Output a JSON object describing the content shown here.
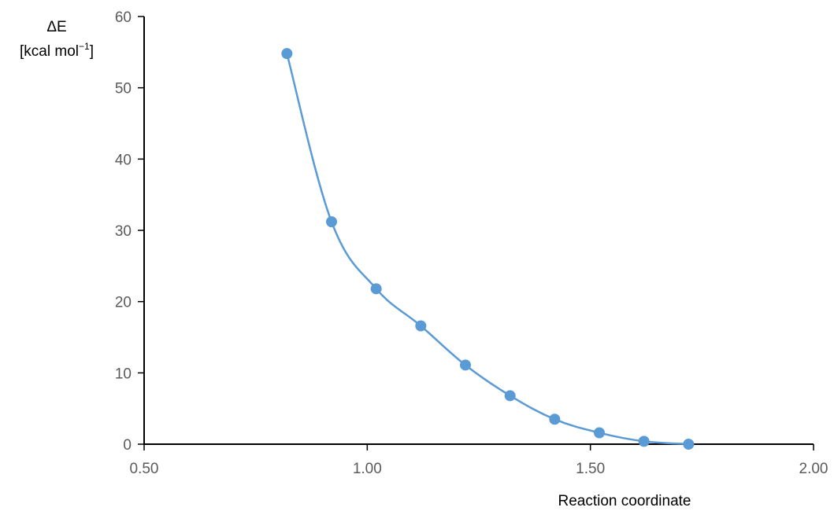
{
  "chart_data": {
    "type": "scatter",
    "title": "",
    "xlabel": "Reaction coordinate",
    "ylabel_line1": "ΔE",
    "ylabel_line2": "[kcal mol",
    "ylabel_sup": "−1",
    "ylabel_close": "]",
    "xlim": [
      0.5,
      2.0
    ],
    "ylim": [
      0,
      60
    ],
    "x_ticks": [
      0.5,
      1.0,
      1.5,
      2.0
    ],
    "x_tick_labels": [
      "0.50",
      "1.00",
      "1.50",
      "2.00"
    ],
    "y_ticks": [
      0,
      10,
      20,
      30,
      40,
      50,
      60
    ],
    "y_tick_labels": [
      "0",
      "10",
      "20",
      "30",
      "40",
      "50",
      "60"
    ],
    "grid": false,
    "legend": "none",
    "series": [
      {
        "color": "#5b9bd5",
        "line": "smooth",
        "marker": "circle",
        "x": [
          0.82,
          0.92,
          1.02,
          1.12,
          1.22,
          1.32,
          1.42,
          1.52,
          1.62,
          1.72
        ],
        "y": [
          54.8,
          31.2,
          21.8,
          16.6,
          11.1,
          6.8,
          3.5,
          1.6,
          0.4,
          0.0
        ]
      }
    ]
  }
}
